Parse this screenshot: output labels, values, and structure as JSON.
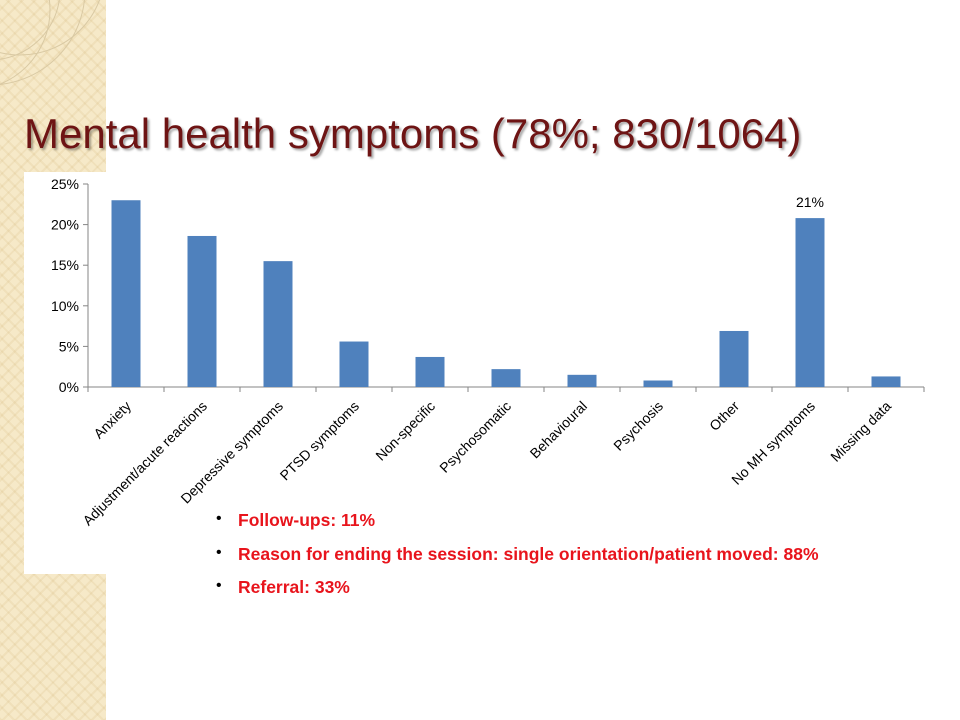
{
  "slide": {
    "title": "Mental health symptoms (78%; 830/1064)",
    "notes": [
      "Follow-ups: 11%",
      "Reason for ending the session: single orientation/patient moved: 88%",
      "Referral: 33%"
    ],
    "colors": {
      "title": "#6e1414",
      "notes": "#e8141c",
      "bars": "#4f81bd",
      "background_band": "#f6e9c8"
    }
  },
  "chart_data": {
    "type": "bar",
    "categories": [
      "Anxiety",
      "Adjustment/acute reactions",
      "Depressive symptoms",
      "PTSD symptoms",
      "Non-specific",
      "Psychosomatic",
      "Behavioural",
      "Psychosis",
      "Other",
      "No MH symptoms",
      "Missing data"
    ],
    "values": [
      23,
      18.6,
      15.5,
      5.6,
      3.7,
      2.2,
      1.5,
      0.8,
      6.9,
      20.8,
      1.3
    ],
    "unit": "%",
    "yticks": [
      "0%",
      "5%",
      "10%",
      "15%",
      "20%",
      "25%"
    ],
    "ylim": [
      0,
      25
    ],
    "data_labels": [
      {
        "index": 9,
        "text": "21%"
      }
    ],
    "grid": false,
    "legend": "none",
    "title": "",
    "xlabel": "",
    "ylabel": ""
  }
}
